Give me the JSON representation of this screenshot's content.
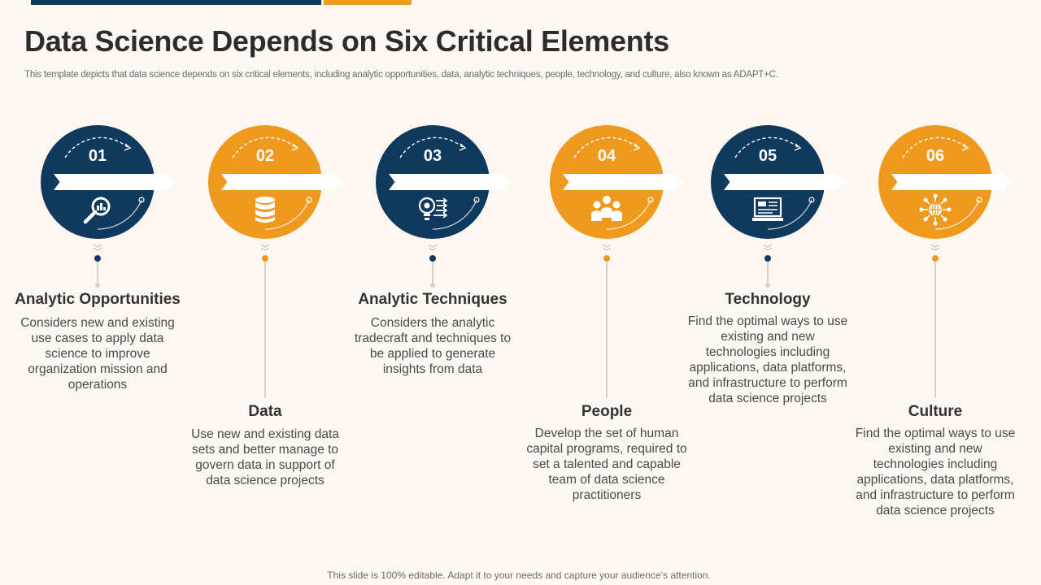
{
  "header": {
    "title": "Data Science Depends on Six Critical Elements",
    "subtitle": "This template depicts that data science depends on six critical elements, including analytic opportunities, data, analytic techniques, people, technology, and culture, also known as ADAPT+C."
  },
  "colors": {
    "navy": "#0f3a5e",
    "orange": "#ef9a1f",
    "background": "#fcf8f1"
  },
  "elements": [
    {
      "number": "01",
      "title": "Analytic Opportunities",
      "description": "Considers new and existing use cases to apply data science to improve organization mission and operations",
      "icon": "search-chart-icon"
    },
    {
      "number": "02",
      "title": "Data",
      "description": "Use new and existing data sets and better manage to govern data in support of data science projects",
      "icon": "database-icon"
    },
    {
      "number": "03",
      "title": "Analytic Techniques",
      "description": "Considers the analytic tradecraft and techniques to be applied to generate insights from data",
      "icon": "lightbulb-gear-icon"
    },
    {
      "number": "04",
      "title": "People",
      "description": "Develop the set of human capital programs, required to set a talented and capable team of data science practitioners",
      "icon": "people-group-icon"
    },
    {
      "number": "05",
      "title": "Technology",
      "description": "Find the optimal ways to use existing and new technologies including applications, data platforms, and infrastructure  to perform data science projects",
      "icon": "computer-monitor-icon"
    },
    {
      "number": "06",
      "title": "Culture",
      "description": "Find the optimal ways to use existing and new technologies including applications, data platforms, and infrastructure  to perform data science projects",
      "icon": "globe-network-icon"
    }
  ],
  "footer": {
    "text": "This slide is 100% editable. Adapt it to your needs and capture your audience’s attention."
  }
}
